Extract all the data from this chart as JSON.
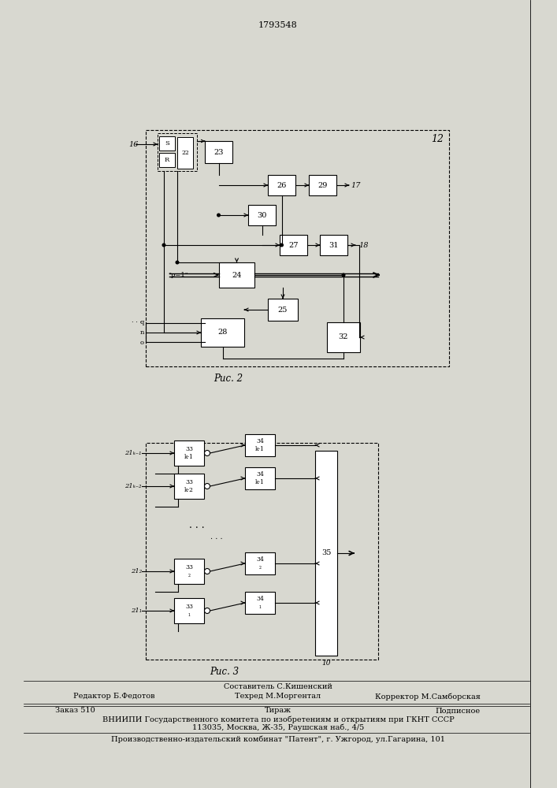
{
  "title": "1793548",
  "fig2_caption": "Рис. 2",
  "fig3_caption": "Рис. 3",
  "bg_color": "#d8d8d0",
  "footer": [
    "Составитель С.Кишенский",
    "Редактор Б.Федотов",
    "Техред М.Моргентал",
    "Корректор М.Самборская",
    "Заказ 510",
    "Тираж",
    "Подписное",
    "ВНИИПИ Государственного комитета по изобретениям и открытиям при ГКНТ СССР",
    "113035, Москва, Ж-35, Раушская наб., 4/5",
    "Производственно-издательский комбинат \"Патент\", г. Ужгород, ул.Гагарина, 101"
  ]
}
